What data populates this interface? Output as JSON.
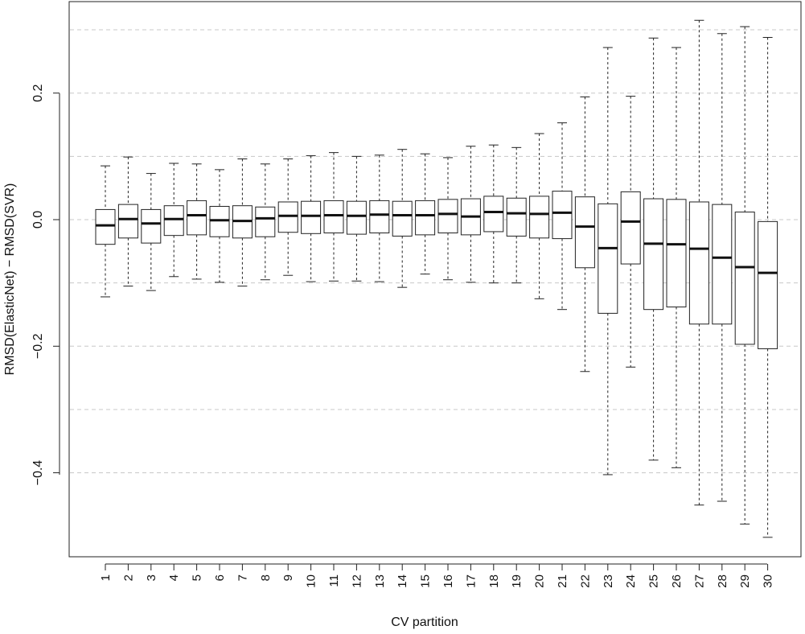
{
  "chart_data": {
    "type": "boxplot",
    "title": "",
    "xlabel": "CV partition",
    "ylabel": "RMSD(ElasticNet) − RMSD(SVR)",
    "ylim": [
      -0.535,
      0.345
    ],
    "yticks": [
      -0.4,
      -0.2,
      0.0,
      0.2
    ],
    "ytick_labels": [
      "−0.4",
      "−0.2",
      "0.0",
      "0.2"
    ],
    "grid_lines_y": [
      -0.4,
      -0.3,
      -0.2,
      -0.1,
      0.0,
      0.1,
      0.2,
      0.3
    ],
    "grid": true,
    "categories": [
      "1",
      "2",
      "3",
      "4",
      "5",
      "6",
      "7",
      "8",
      "9",
      "10",
      "11",
      "12",
      "13",
      "14",
      "15",
      "16",
      "17",
      "18",
      "19",
      "20",
      "21",
      "22",
      "23",
      "24",
      "25",
      "26",
      "27",
      "28",
      "29",
      "30"
    ],
    "boxes": [
      {
        "min": -0.122,
        "q1": -0.039,
        "median": -0.009,
        "q3": 0.016,
        "max": 0.085
      },
      {
        "min": -0.105,
        "q1": -0.029,
        "median": 0.001,
        "q3": 0.024,
        "max": 0.099
      },
      {
        "min": -0.112,
        "q1": -0.037,
        "median": -0.006,
        "q3": 0.016,
        "max": 0.073
      },
      {
        "min": -0.09,
        "q1": -0.025,
        "median": 0.001,
        "q3": 0.022,
        "max": 0.089
      },
      {
        "min": -0.094,
        "q1": -0.024,
        "median": 0.007,
        "q3": 0.03,
        "max": 0.088
      },
      {
        "min": -0.099,
        "q1": -0.027,
        "median": -0.001,
        "q3": 0.021,
        "max": 0.079
      },
      {
        "min": -0.105,
        "q1": -0.029,
        "median": -0.002,
        "q3": 0.022,
        "max": 0.096
      },
      {
        "min": -0.095,
        "q1": -0.027,
        "median": 0.002,
        "q3": 0.02,
        "max": 0.088
      },
      {
        "min": -0.088,
        "q1": -0.02,
        "median": 0.006,
        "q3": 0.028,
        "max": 0.096
      },
      {
        "min": -0.098,
        "q1": -0.022,
        "median": 0.006,
        "q3": 0.029,
        "max": 0.101
      },
      {
        "min": -0.097,
        "q1": -0.021,
        "median": 0.007,
        "q3": 0.03,
        "max": 0.106
      },
      {
        "min": -0.097,
        "q1": -0.023,
        "median": 0.006,
        "q3": 0.029,
        "max": 0.1
      },
      {
        "min": -0.098,
        "q1": -0.021,
        "median": 0.008,
        "q3": 0.03,
        "max": 0.102
      },
      {
        "min": -0.107,
        "q1": -0.026,
        "median": 0.007,
        "q3": 0.029,
        "max": 0.111
      },
      {
        "min": -0.086,
        "q1": -0.024,
        "median": 0.007,
        "q3": 0.03,
        "max": 0.104
      },
      {
        "min": -0.095,
        "q1": -0.021,
        "median": 0.009,
        "q3": 0.032,
        "max": 0.098
      },
      {
        "min": -0.099,
        "q1": -0.024,
        "median": 0.005,
        "q3": 0.033,
        "max": 0.116
      },
      {
        "min": -0.1,
        "q1": -0.019,
        "median": 0.012,
        "q3": 0.037,
        "max": 0.118
      },
      {
        "min": -0.1,
        "q1": -0.026,
        "median": 0.01,
        "q3": 0.034,
        "max": 0.114
      },
      {
        "min": -0.125,
        "q1": -0.029,
        "median": 0.009,
        "q3": 0.037,
        "max": 0.136
      },
      {
        "min": -0.142,
        "q1": -0.03,
        "median": 0.011,
        "q3": 0.045,
        "max": 0.153
      },
      {
        "min": -0.24,
        "q1": -0.076,
        "median": -0.011,
        "q3": 0.036,
        "max": 0.194
      },
      {
        "min": -0.403,
        "q1": -0.148,
        "median": -0.045,
        "q3": 0.025,
        "max": 0.272
      },
      {
        "min": -0.233,
        "q1": -0.07,
        "median": -0.003,
        "q3": 0.044,
        "max": 0.195
      },
      {
        "min": -0.38,
        "q1": -0.142,
        "median": -0.038,
        "q3": 0.033,
        "max": 0.287
      },
      {
        "min": -0.392,
        "q1": -0.138,
        "median": -0.039,
        "q3": 0.032,
        "max": 0.272
      },
      {
        "min": -0.451,
        "q1": -0.165,
        "median": -0.046,
        "q3": 0.028,
        "max": 0.315
      },
      {
        "min": -0.445,
        "q1": -0.165,
        "median": -0.06,
        "q3": 0.024,
        "max": 0.294
      },
      {
        "min": -0.481,
        "q1": -0.197,
        "median": -0.075,
        "q3": 0.012,
        "max": 0.305
      },
      {
        "min": -0.502,
        "q1": -0.204,
        "median": -0.084,
        "q3": -0.003,
        "max": 0.288
      }
    ]
  }
}
